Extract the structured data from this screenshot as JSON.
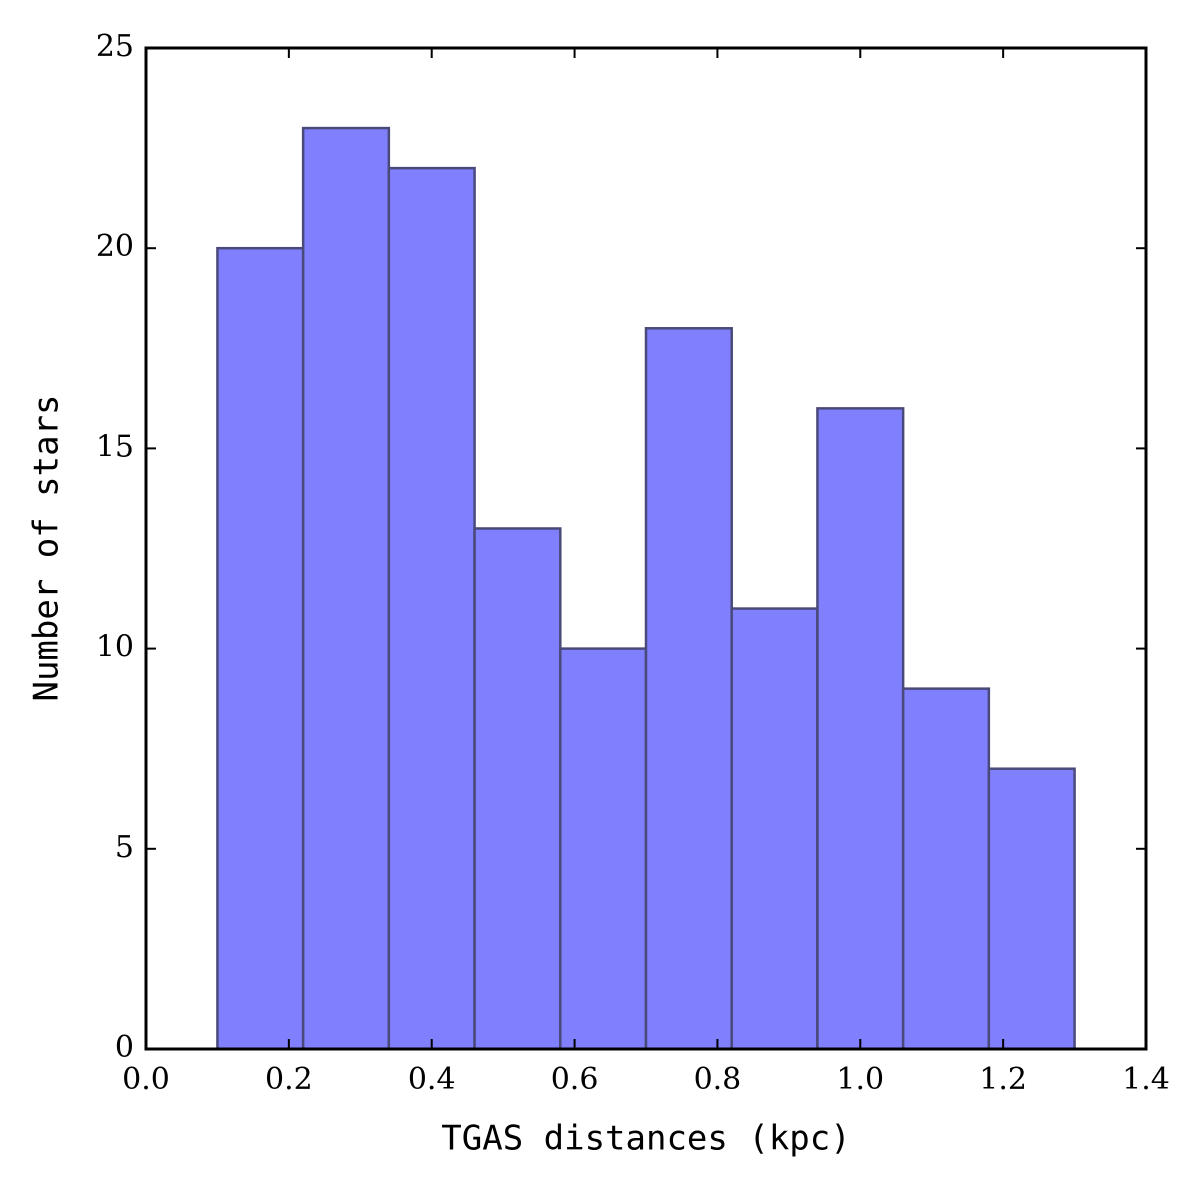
{
  "chart_data": {
    "type": "histogram",
    "xlabel": "TGAS distances (kpc)",
    "ylabel": "Number of stars",
    "bins": [
      0.1,
      0.22,
      0.34,
      0.46,
      0.58,
      0.7,
      0.82,
      0.94,
      1.06,
      1.18,
      1.3
    ],
    "values": [
      20,
      23,
      22,
      13,
      10,
      18,
      11,
      16,
      9,
      7
    ],
    "color": "#8080ff",
    "edgecolor": "#4a4a7a",
    "xlim": [
      0,
      1.4
    ],
    "ylim": [
      0,
      25
    ],
    "xticks": [
      {
        "value": 0,
        "label": "0.0"
      },
      0.2,
      0.4,
      0.6,
      0.8,
      {
        "value": 1,
        "label": "1.0"
      },
      1.2,
      1.4
    ],
    "yticks": [
      0,
      5,
      10,
      15,
      20,
      25
    ]
  }
}
